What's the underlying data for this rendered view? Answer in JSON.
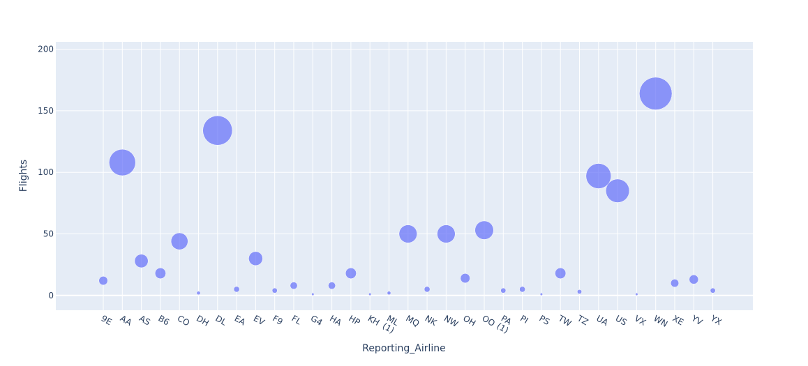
{
  "chart_data": {
    "type": "scatter",
    "subtype": "bubble",
    "xlabel": "Reporting_Airline",
    "ylabel": "Flights",
    "ylim": [
      -12,
      206
    ],
    "yticks": [
      0,
      50,
      100,
      150,
      200
    ],
    "grid": true,
    "legend": "none",
    "colors": {
      "marker": "#636efa",
      "plot_bg": "#e5ecf6",
      "grid": "#ffffff",
      "text": "#2a3f5f"
    },
    "categories": [
      "9E",
      "AA",
      "AS",
      "B6",
      "CO",
      "DH",
      "DL",
      "EA",
      "EV",
      "F9",
      "FL",
      "G4",
      "HA",
      "HP",
      "KH",
      "ML (1)",
      "MQ",
      "NK",
      "NW",
      "OH",
      "OO",
      "PA (1)",
      "PI",
      "PS",
      "TW",
      "TZ",
      "UA",
      "US",
      "VX",
      "WN",
      "XE",
      "YV",
      "YX"
    ],
    "values": [
      12,
      108,
      28,
      18,
      44,
      2,
      134,
      5,
      30,
      4,
      8,
      1,
      8,
      18,
      1,
      2,
      50,
      5,
      50,
      14,
      53,
      4,
      5,
      1,
      18,
      3,
      97,
      85,
      1,
      164,
      10,
      13,
      4
    ]
  }
}
